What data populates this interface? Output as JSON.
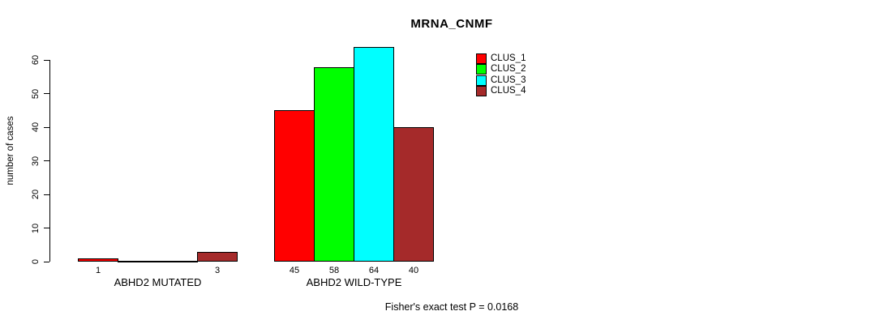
{
  "chart_data": {
    "type": "bar",
    "title": "MRNA_CNMF",
    "ylabel": "number of cases",
    "xlabel": "",
    "footnote": "Fisher's exact test P = 0.0168",
    "ylim": [
      0,
      64
    ],
    "yticks": [
      0,
      10,
      20,
      30,
      40,
      50,
      60
    ],
    "grid": false,
    "legend_position": "top-right-inside",
    "categories": [
      "ABHD2 MUTATED",
      "ABHD2 WILD-TYPE"
    ],
    "series": [
      {
        "name": "CLUS_1",
        "color": "#FF0000",
        "values": [
          1,
          45
        ]
      },
      {
        "name": "CLUS_2",
        "color": "#00FF00",
        "values": [
          0,
          58
        ]
      },
      {
        "name": "CLUS_3",
        "color": "#00FFFF",
        "values": [
          0,
          64
        ]
      },
      {
        "name": "CLUS_4",
        "color": "#A52A2A",
        "values": [
          3,
          40
        ]
      }
    ],
    "groups": [
      {
        "label": "ABHD2 MUTATED",
        "values": [
          1,
          0,
          0,
          3
        ],
        "bar_labels": [
          "1",
          "",
          "",
          "3"
        ]
      },
      {
        "label": "ABHD2 WILD-TYPE",
        "values": [
          45,
          58,
          64,
          40
        ],
        "bar_labels": [
          "45",
          "58",
          "64",
          "40"
        ]
      }
    ]
  }
}
